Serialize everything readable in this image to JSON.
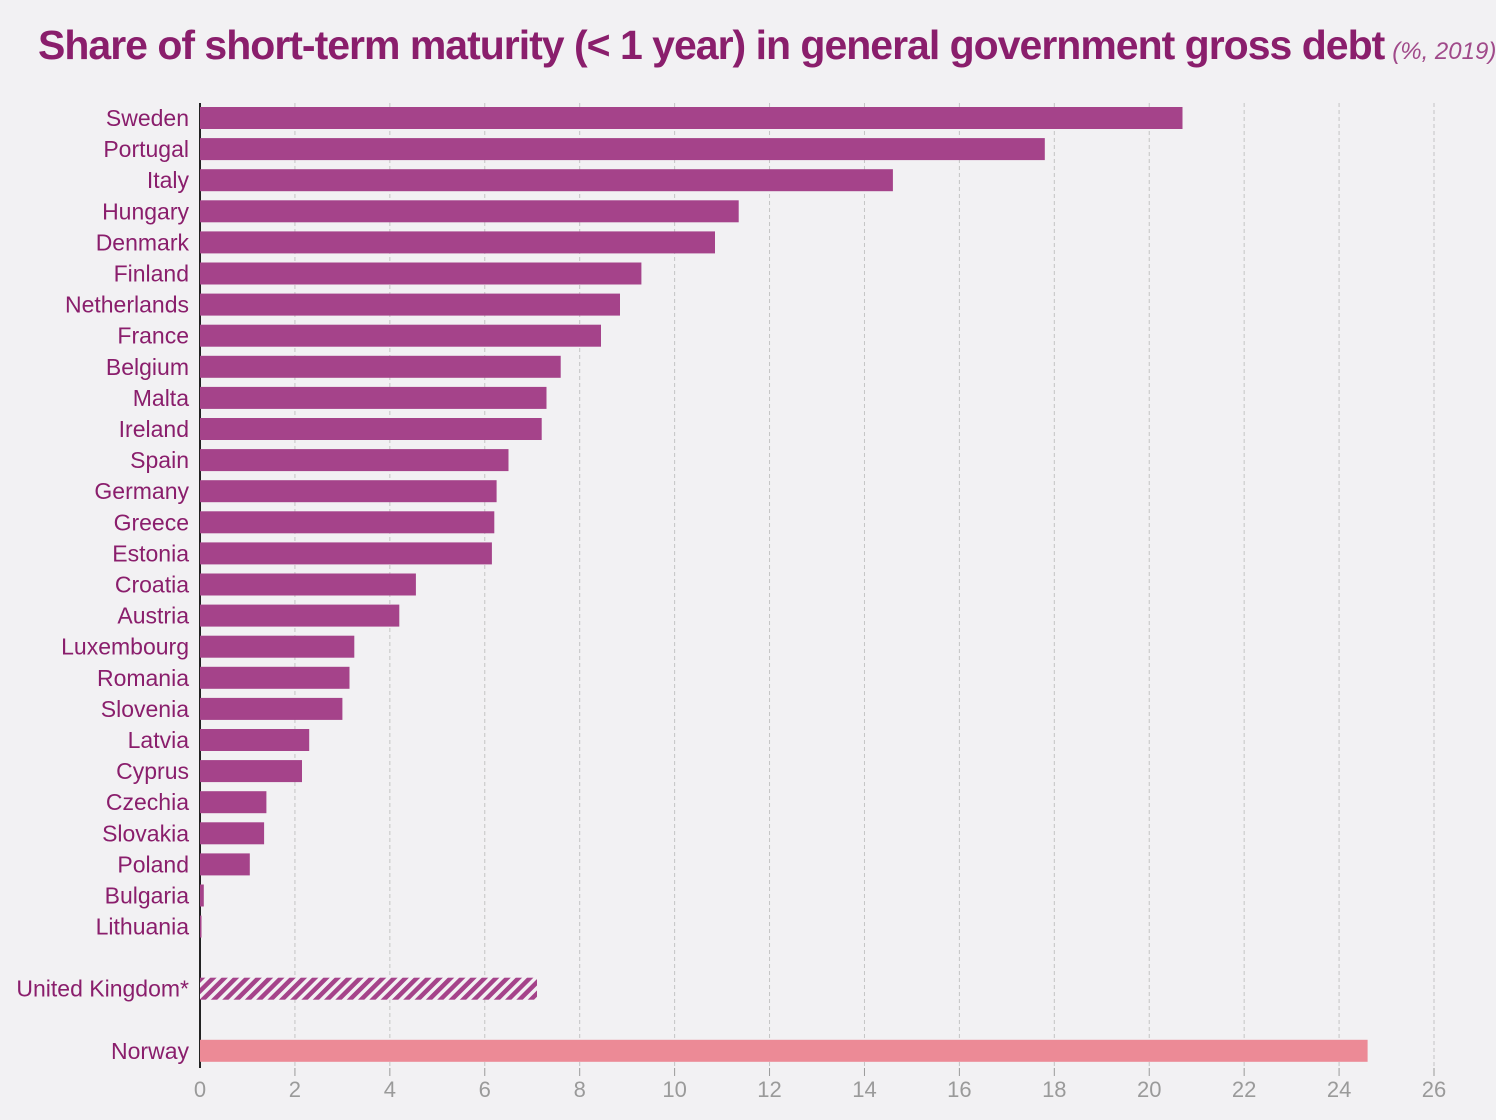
{
  "chart_data": {
    "type": "bar",
    "orientation": "horizontal",
    "title": "Share of short-term maturity (< 1 year) in general government gross debt",
    "subtitle": "(%, 2019)",
    "xlabel": "",
    "ylabel": "",
    "xlim": [
      0,
      26
    ],
    "ticks": [
      0,
      2,
      4,
      6,
      8,
      10,
      12,
      14,
      16,
      18,
      20,
      22,
      24,
      26
    ],
    "grid": "vertical dashed",
    "legend": "none",
    "colors": {
      "eu": "#a5438a",
      "uk_hatch": "#a5438a",
      "norway": "#ec8a96",
      "label": "#8a1e6c",
      "axis_tick": "#9a9a9a",
      "background": "#f2f1f3"
    },
    "groups": [
      {
        "style": "eu",
        "items": [
          {
            "category": "Sweden",
            "value": 20.7
          },
          {
            "category": "Portugal",
            "value": 17.8
          },
          {
            "category": "Italy",
            "value": 14.6
          },
          {
            "category": "Hungary",
            "value": 11.35
          },
          {
            "category": "Denmark",
            "value": 10.85
          },
          {
            "category": "Finland",
            "value": 9.3
          },
          {
            "category": "Netherlands",
            "value": 8.85
          },
          {
            "category": "France",
            "value": 8.45
          },
          {
            "category": "Belgium",
            "value": 7.6
          },
          {
            "category": "Malta",
            "value": 7.3
          },
          {
            "category": "Ireland",
            "value": 7.2
          },
          {
            "category": "Spain",
            "value": 6.5
          },
          {
            "category": "Germany",
            "value": 6.25
          },
          {
            "category": "Greece",
            "value": 6.2
          },
          {
            "category": "Estonia",
            "value": 6.15
          },
          {
            "category": "Croatia",
            "value": 4.55
          },
          {
            "category": "Austria",
            "value": 4.2
          },
          {
            "category": "Luxembourg",
            "value": 3.25
          },
          {
            "category": "Romania",
            "value": 3.15
          },
          {
            "category": "Slovenia",
            "value": 3.0
          },
          {
            "category": "Latvia",
            "value": 2.3
          },
          {
            "category": "Cyprus",
            "value": 2.15
          },
          {
            "category": "Czechia",
            "value": 1.4
          },
          {
            "category": "Slovakia",
            "value": 1.35
          },
          {
            "category": "Poland",
            "value": 1.05
          },
          {
            "category": "Bulgaria",
            "value": 0.08
          },
          {
            "category": "Lithuania",
            "value": 0.03
          }
        ]
      },
      {
        "style": "uk_hatch",
        "items": [
          {
            "category": "United Kingdom*",
            "value": 7.1
          }
        ]
      },
      {
        "style": "norway",
        "items": [
          {
            "category": "Norway",
            "value": 24.6
          }
        ]
      }
    ]
  }
}
